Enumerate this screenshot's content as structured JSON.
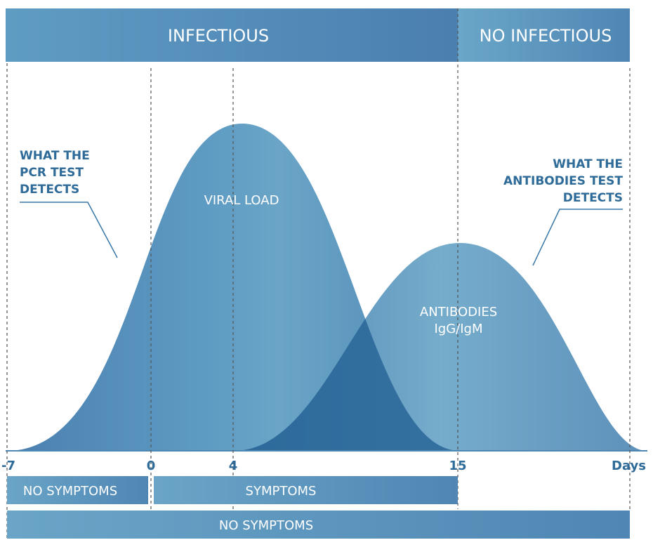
{
  "bands": {
    "infectious": "INFECTIOUS",
    "no_infectious": "NO INFECTIOUS"
  },
  "curves": {
    "viral_load": "VIRAL LOAD",
    "antibodies_line1": "ANTIBODIES",
    "antibodies_line2": "IgG/IgM"
  },
  "callouts": {
    "pcr": [
      "WHAT THE",
      "PCR TEST",
      "DETECTS"
    ],
    "antibodies": [
      "WHAT THE",
      "ANTIBODIES TEST",
      "DETECTS"
    ]
  },
  "axis": {
    "ticks": [
      "-7",
      "0",
      "4",
      "15"
    ],
    "unit": "Days"
  },
  "bars": {
    "presymptomatic": "NO SYMPTOMS",
    "symptoms": "SYMPTOMS",
    "asymptomatic": "NO SYMPTOMS"
  },
  "colors": {
    "primary": "#4f87b4",
    "light": "#6ba5c7",
    "dark": "#2e6b99",
    "overlap": "#2a6799"
  }
}
